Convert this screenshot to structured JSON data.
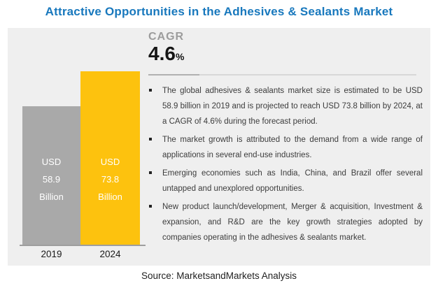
{
  "title": "Attractive Opportunities in the Adhesives & Sealants Market",
  "cagr": {
    "label": "CAGR",
    "value": "4.6",
    "unit": "%"
  },
  "bullets": [
    "The global adhesives & sealants market size is estimated to be USD 58.9 billion in 2019 and is projected to reach USD 73.8 billion by 2024, at a CAGR of 4.6% during the forecast period.",
    "The market growth is attributed to the demand from a wide range of applications in several end-use industries.",
    "Emerging economies such as India, China, and Brazil offer several untapped and unexplored opportunities.",
    "New product launch/development, Merger & acquisition, Investment & expansion, and R&D are the key growth strategies adopted by companies operating in the adhesives & sealants market."
  ],
  "source": "Source: MarketsandMarkets Analysis",
  "chart_data": {
    "type": "bar",
    "categories": [
      "2019",
      "2024"
    ],
    "values": [
      58.9,
      73.8
    ],
    "unit": "USD Billion",
    "bar_labels": [
      "USD 58.9 Billion",
      "USD 73.8 Billion"
    ],
    "bar_label_lines": [
      [
        "USD",
        "58.9",
        "Billion"
      ],
      [
        "USD",
        "73.8",
        "Billion"
      ]
    ],
    "colors": [
      "#a9a9a9",
      "#fdc20e"
    ],
    "title": "Attractive Opportunities in the Adhesives & Sealants Market",
    "xlabel": "",
    "ylabel": "",
    "ylim": [
      0,
      73.8
    ],
    "legend": false,
    "gridlines": false
  },
  "colors": {
    "title_blue": "#1878bd",
    "panel_background": "#efefef",
    "bar_2019": "#a9a9a9",
    "bar_2024": "#fdc20e",
    "cagr_label_gray": "#9c9c9c",
    "divider_dark": "#b0b0b0",
    "divider_light": "#d8d8d8",
    "body_text": "#3c3c3c"
  }
}
